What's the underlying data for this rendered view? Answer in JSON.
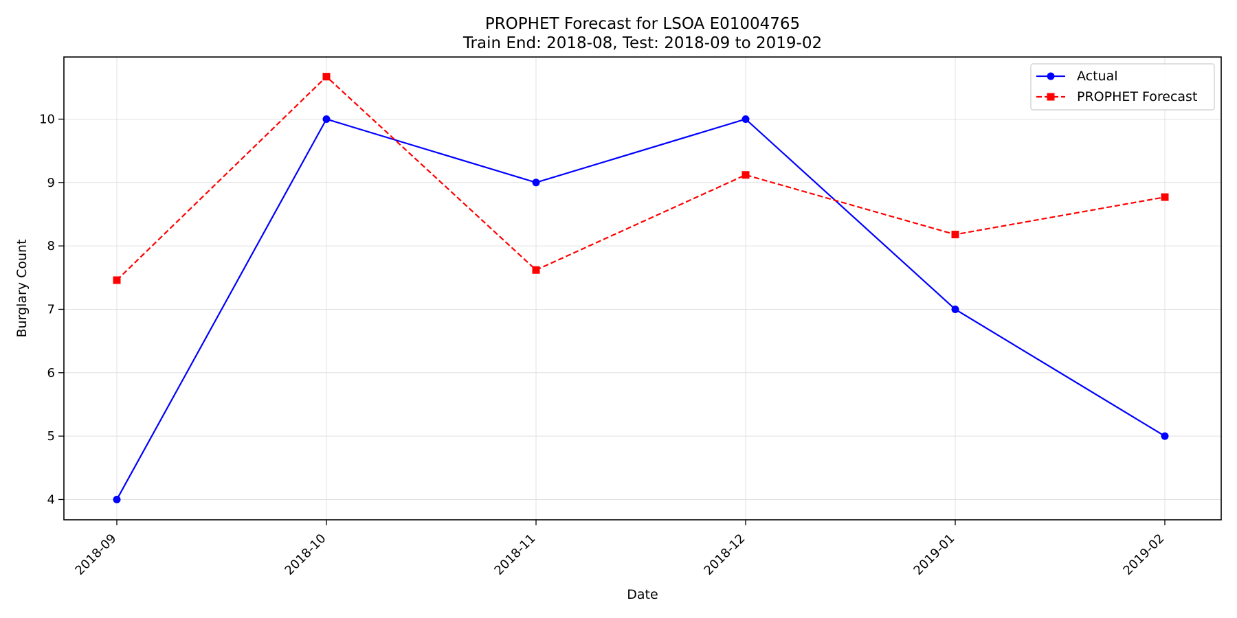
{
  "chart_data": {
    "type": "line",
    "title": "PROPHET Forecast for LSOA E01004765",
    "subtitle": "Train End: 2018-08, Test: 2018-09 to 2019-02",
    "xlabel": "Date",
    "ylabel": "Burglary Count",
    "categories": [
      "2018-09",
      "2018-10",
      "2018-11",
      "2018-12",
      "2019-01",
      "2019-02"
    ],
    "ylim": [
      3.68,
      10.98
    ],
    "yticks": [
      4,
      5,
      6,
      7,
      8,
      9,
      10
    ],
    "grid": true,
    "legend_position": "top-right",
    "series": [
      {
        "name": "Actual",
        "values": [
          4,
          10,
          9,
          10,
          7,
          5
        ],
        "color": "#0000ff",
        "line_style": "solid",
        "marker": "circle"
      },
      {
        "name": "PROPHET Forecast",
        "values": [
          7.46,
          10.67,
          7.62,
          9.12,
          8.18,
          8.77
        ],
        "color": "#ff0000",
        "line_style": "dashed",
        "marker": "square"
      }
    ]
  }
}
